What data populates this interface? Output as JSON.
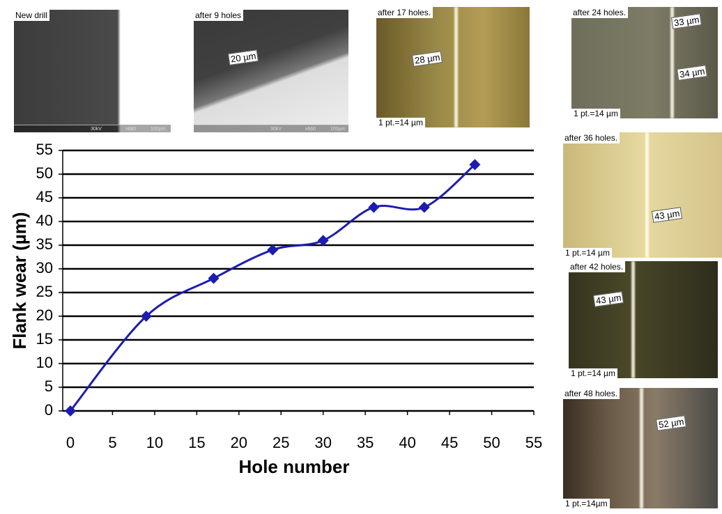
{
  "chart_data": {
    "type": "line",
    "xlabel": "Hole number",
    "ylabel": "Flank wear (µm)",
    "x": [
      0,
      9,
      17,
      24,
      30,
      36,
      42,
      48
    ],
    "values": [
      0,
      20,
      28,
      34,
      36,
      43,
      43,
      52
    ],
    "color": "#1c1cb0",
    "xlim": [
      0,
      55
    ],
    "xticks": [
      0,
      5,
      10,
      15,
      20,
      25,
      30,
      35,
      40,
      45,
      50,
      55
    ],
    "ylim": [
      0,
      55
    ],
    "yticks": [
      0,
      5,
      10,
      15,
      20,
      25,
      30,
      35,
      40,
      45,
      50,
      55
    ],
    "grid": true
  },
  "panels": [
    {
      "caption": "New drill",
      "labels": [],
      "footer": [
        "30kV",
        "x680",
        "100µm"
      ]
    },
    {
      "caption": "after 9 holes",
      "labels": [
        "20 µm"
      ],
      "footer": [
        "30kV",
        "x660",
        "100µm"
      ]
    },
    {
      "caption": "after 17 holes.",
      "labels": [
        "28 µm"
      ],
      "scale": "1 pt.=14 µm"
    },
    {
      "caption": "after 24 holes.",
      "labels": [
        "33 µm",
        "34 µm"
      ],
      "scale": "1 pt.=14 µm"
    },
    {
      "caption": "after 36 holes.",
      "labels": [
        "43 µm"
      ],
      "scale": "1 pt.=14 µm"
    },
    {
      "caption": "after 42 holes.",
      "labels": [
        "43 µm"
      ],
      "scale": "1 pt.=14 µm"
    },
    {
      "caption": "after 48 holes.",
      "labels": [
        "52 µm"
      ],
      "scale": "1 pt.=14µm"
    }
  ]
}
